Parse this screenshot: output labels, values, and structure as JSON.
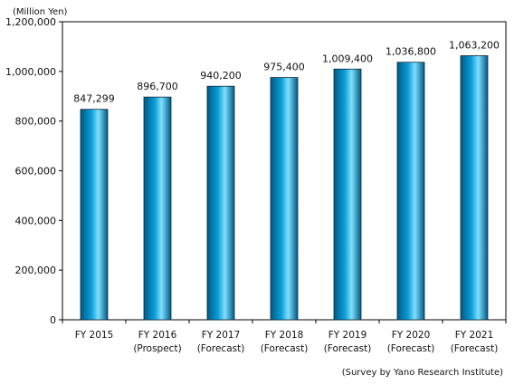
{
  "chart_data": {
    "type": "bar",
    "unit_label": "(Million Yen)",
    "source_note": "(Survey by Yano Research Institute)",
    "categories": [
      [
        "FY 2015",
        ""
      ],
      [
        "FY 2016",
        "(Prospect)"
      ],
      [
        "FY 2017",
        "(Forecast)"
      ],
      [
        "FY 2018",
        "(Forecast)"
      ],
      [
        "FY 2019",
        "(Forecast)"
      ],
      [
        "FY 2020",
        "(Forecast)"
      ],
      [
        "FY 2021",
        "(Forecast)"
      ]
    ],
    "values": [
      847299,
      896700,
      940200,
      975400,
      1009400,
      1036800,
      1063200
    ],
    "data_labels": [
      "847,299",
      "896,700",
      "940,200",
      "975,400",
      "1,009,400",
      "1,036,800",
      "1,063,200"
    ],
    "ylim": [
      0,
      1200000
    ],
    "yticks": [
      0,
      200000,
      400000,
      600000,
      800000,
      1000000,
      1200000
    ],
    "ytick_labels": [
      "0",
      "200,000",
      "400,000",
      "600,000",
      "800,000",
      "1,000,000",
      "1,200,000"
    ],
    "grid": false,
    "legend": "none",
    "colors": {
      "bar_dark": "#005a86",
      "bar_mid": "#0b9ed8",
      "bar_light": "#7fe0ff",
      "axis": "#000000"
    }
  }
}
